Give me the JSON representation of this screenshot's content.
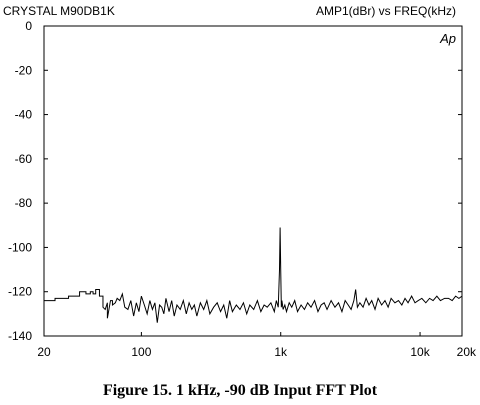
{
  "header": {
    "left": "CRYSTAL   M90DB1K",
    "right": "AMP1(dBr)    vs    FREQ(kHz)"
  },
  "watermark": "Ap",
  "caption": "Figure 15.  1 kHz, -90 dB Input FFT Plot",
  "chart_data": {
    "type": "line",
    "title": "",
    "xlabel": "",
    "ylabel": "",
    "x_scale": "log",
    "xlim": [
      20,
      20000
    ],
    "ylim": [
      -140,
      0
    ],
    "grid": false,
    "x_ticks": [
      {
        "value": 20,
        "label": "20"
      },
      {
        "value": 100,
        "label": "100"
      },
      {
        "value": 1000,
        "label": "1k"
      },
      {
        "value": 10000,
        "label": "10k"
      },
      {
        "value": 20000,
        "label": "20k"
      }
    ],
    "y_ticks": [
      {
        "value": 0,
        "label": "0"
      },
      {
        "value": -20,
        "label": "-20"
      },
      {
        "value": -40,
        "label": "-40"
      },
      {
        "value": -60,
        "label": "-60"
      },
      {
        "value": -80,
        "label": "-80"
      },
      {
        "value": -100,
        "label": "-100"
      },
      {
        "value": -120,
        "label": "-120"
      },
      {
        "value": -140,
        "label": "-140"
      }
    ],
    "series": [
      {
        "x": [
          20,
          22,
          24,
          24,
          26,
          28,
          30,
          30,
          32,
          34,
          36,
          36,
          40,
          40,
          43,
          43,
          45,
          45,
          47,
          47,
          50,
          50,
          53,
          53,
          55,
          57,
          57,
          60,
          62,
          62,
          65,
          67,
          70,
          73,
          76,
          80,
          84,
          88,
          92,
          96,
          100,
          105,
          110,
          115,
          120,
          125,
          130,
          135,
          140,
          145,
          150,
          158,
          165,
          172,
          180,
          190,
          200,
          210,
          220,
          230,
          240,
          250,
          265,
          280,
          295,
          310,
          330,
          350,
          370,
          390,
          410,
          430,
          450,
          480,
          510,
          540,
          570,
          600,
          640,
          680,
          720,
          760,
          800,
          850,
          900,
          930,
          960,
          980,
          990,
          1000,
          1010,
          1020,
          1040,
          1070,
          1100,
          1150,
          1200,
          1260,
          1320,
          1400,
          1480,
          1560,
          1650,
          1750,
          1850,
          1950,
          2050,
          2150,
          2300,
          2450,
          2600,
          2750,
          2900,
          3050,
          3200,
          3350,
          3450,
          3550,
          3700,
          3900,
          4100,
          4300,
          4500,
          4750,
          5000,
          5300,
          5600,
          5900,
          6200,
          6600,
          7000,
          7400,
          7800,
          8200,
          8700,
          9200,
          9700,
          10300,
          11000,
          11700,
          12400,
          13200,
          14000,
          15000,
          16000,
          17000,
          18000,
          19000,
          20000
        ],
        "y": [
          -124,
          -124,
          -124,
          -123,
          -123,
          -123,
          -123,
          -122,
          -122,
          -122,
          -122,
          -120,
          -120,
          -121,
          -121,
          -120,
          -120,
          -121,
          -121,
          -119,
          -119,
          -122,
          -122,
          -127,
          -128,
          -125,
          -132,
          -124,
          -124,
          -126,
          -125,
          -123,
          -124,
          -121,
          -127,
          -128,
          -124,
          -131,
          -125,
          -129,
          -122,
          -126,
          -130,
          -124,
          -128,
          -125,
          -134,
          -126,
          -127,
          -130,
          -123,
          -129,
          -124,
          -131,
          -126,
          -128,
          -124,
          -130,
          -125,
          -128,
          -126,
          -131,
          -125,
          -128,
          -124,
          -130,
          -127,
          -125,
          -129,
          -126,
          -132,
          -124,
          -129,
          -126,
          -128,
          -125,
          -130,
          -126,
          -128,
          -124,
          -129,
          -126,
          -127,
          -125,
          -129,
          -124,
          -127,
          -110,
          -91,
          -110,
          -127,
          -124,
          -128,
          -126,
          -129,
          -125,
          -127,
          -124,
          -129,
          -126,
          -128,
          -125,
          -127,
          -124,
          -129,
          -126,
          -125,
          -128,
          -124,
          -127,
          -125,
          -129,
          -124,
          -126,
          -128,
          -124,
          -119,
          -127,
          -125,
          -127,
          -123,
          -126,
          -124,
          -128,
          -123,
          -126,
          -124,
          -127,
          -123,
          -125,
          -124,
          -126,
          -123,
          -125,
          -122,
          -125,
          -124,
          -123,
          -125,
          -123,
          -124,
          -122,
          -124,
          -123,
          -123,
          -124,
          -122,
          -123,
          -122
        ]
      }
    ]
  }
}
